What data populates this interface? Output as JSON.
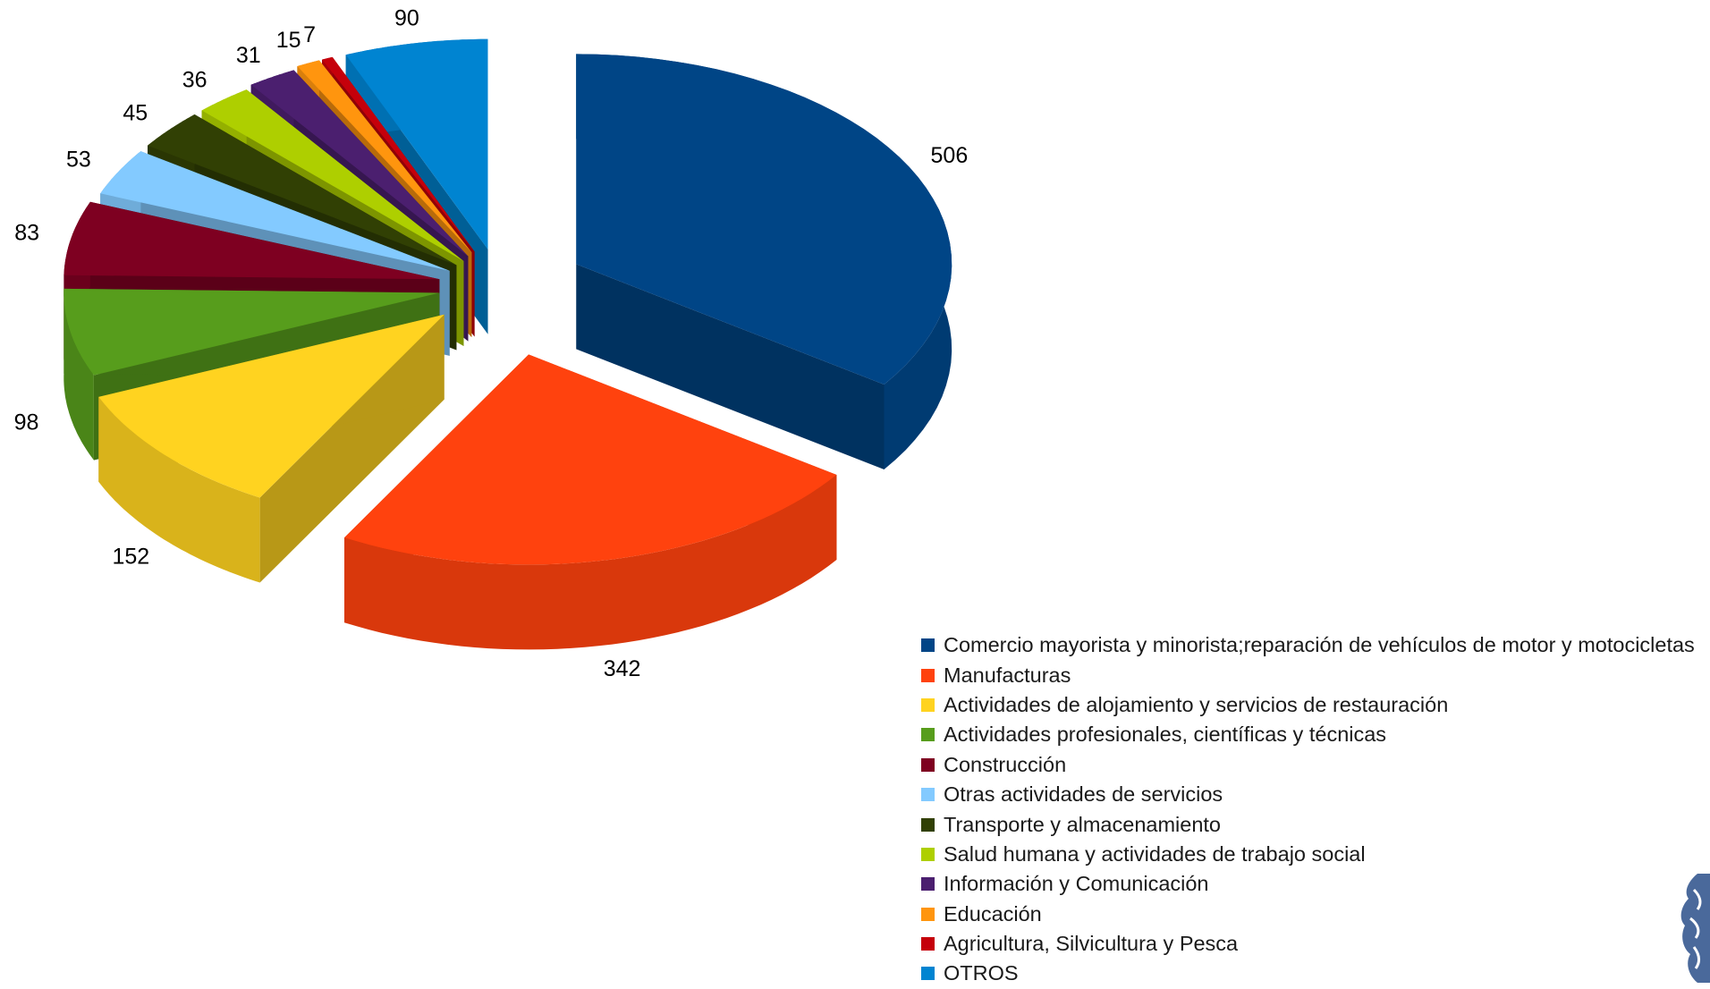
{
  "chart_data": {
    "type": "pie",
    "title": "",
    "exploded": true,
    "three_d": true,
    "legend_position": "bottom-right",
    "categories": [
      "Comercio mayorista y minorista;reparación de vehículos de motor y motocicletas",
      "Manufacturas",
      "Actividades de alojamiento y servicios de restauración",
      "Actividades profesionales, científicas y técnicas",
      "Construcción",
      "Otras actividades de servicios",
      "Transporte y almacenamiento",
      "Salud humana y actividades de trabajo social",
      "Información y Comunicación",
      "Educación",
      "Agricultura, Silvicultura y Pesca",
      "OTROS"
    ],
    "values": [
      506,
      342,
      152,
      98,
      83,
      53,
      45,
      36,
      31,
      15,
      7,
      90
    ],
    "value_labels": [
      "506",
      "342",
      "152",
      "98",
      "83",
      "53",
      "45",
      "36",
      "31",
      "15",
      "7",
      "90"
    ],
    "colors": [
      "#004586",
      "#ff420e",
      "#ffd320",
      "#579d1c",
      "#7e0021",
      "#83caff",
      "#314004",
      "#aecf00",
      "#4b1f6f",
      "#ff950e",
      "#c5000b",
      "#0084d1"
    ]
  },
  "decoration": {
    "corner_logo": "partial-logo-icon"
  }
}
